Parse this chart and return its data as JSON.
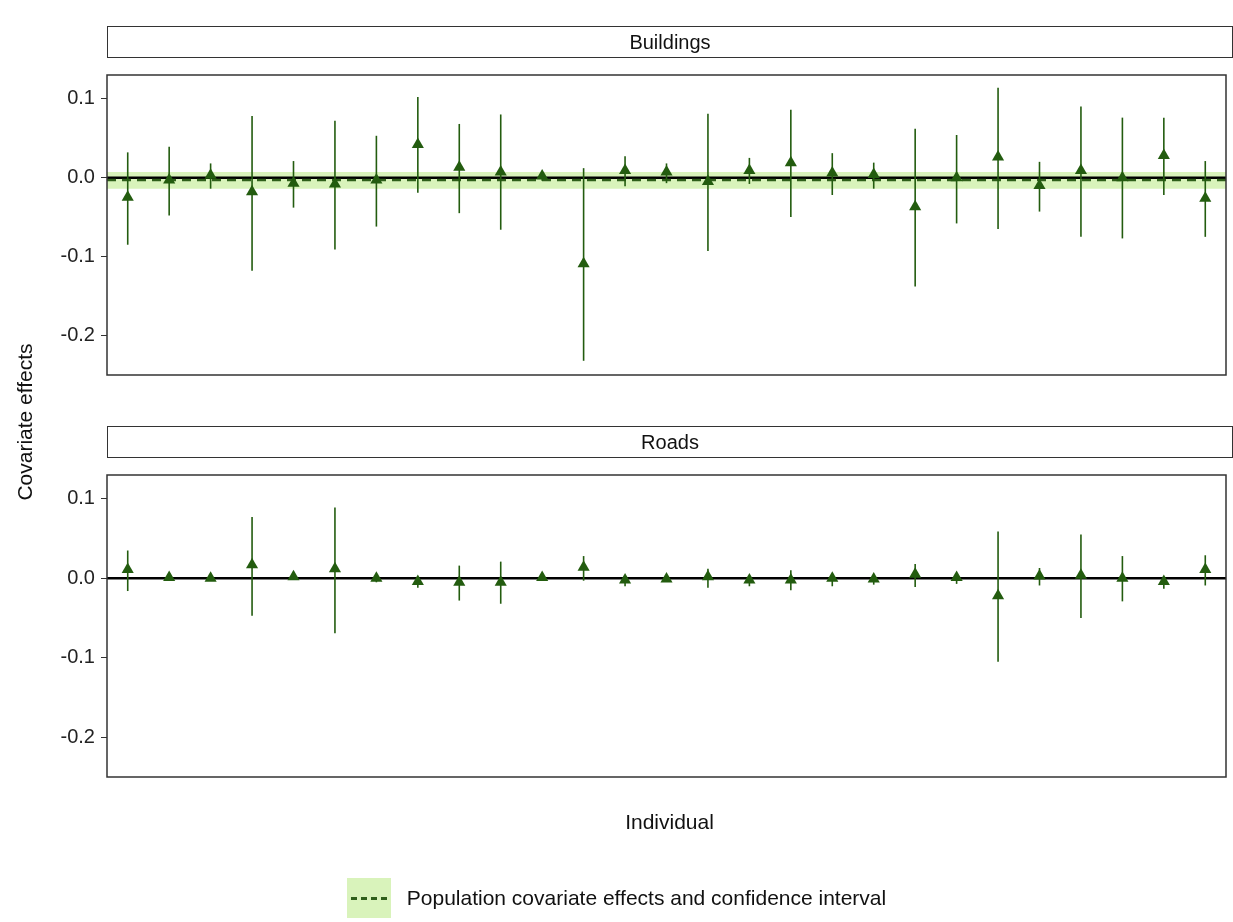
{
  "chart_data": [
    {
      "type": "scatter",
      "title": "Buildings",
      "ylabel": "Covariate effects",
      "marker": "triangle",
      "grid": false,
      "tick_labels": "y",
      "legend": "bottom",
      "categories": [
        null,
        null,
        null,
        null,
        null,
        null,
        null,
        null,
        null,
        null,
        null,
        null,
        null,
        null,
        null,
        null,
        null,
        null,
        null,
        null,
        null,
        null,
        null,
        null,
        null,
        null,
        null
      ],
      "ylim": [
        -0.25,
        0.13
      ],
      "yticks": [
        {
          "value": -0.2,
          "label": "-0.2"
        },
        {
          "value": -0.1,
          "label": "-0.1"
        },
        {
          "value": 0,
          "label": "0.0"
        },
        {
          "value": 0.1,
          "label": "0.1"
        }
      ],
      "series": [
        {
          "type": "scatter",
          "color": "#235c0f",
          "values": [
            -0.025,
            -0.003,
            0.003,
            -0.018,
            -0.007,
            -0.008,
            -0.003,
            0.042,
            0.013,
            0.007,
            0.002,
            -0.109,
            0.009,
            0.007,
            -0.005,
            0.009,
            0.019,
            0.006,
            0.004,
            -0.037,
            0,
            0.026,
            -0.01,
            0.009,
            0,
            0.028,
            -0.026
          ],
          "errors": [
            [
              -0.085,
              0.032
            ],
            [
              -0.048,
              0.039
            ],
            [
              -0.014,
              0.018
            ],
            [
              -0.118,
              0.078
            ],
            [
              -0.038,
              0.021
            ],
            [
              -0.091,
              0.072
            ],
            [
              -0.062,
              0.053
            ],
            [
              -0.019,
              0.102
            ],
            [
              -0.045,
              0.068
            ],
            [
              -0.066,
              0.08
            ],
            [
              -0.004,
              0.005
            ],
            [
              -0.232,
              0.012
            ],
            [
              -0.011,
              0.027
            ],
            [
              -0.007,
              0.018
            ],
            [
              -0.093,
              0.081
            ],
            [
              -0.008,
              0.025
            ],
            [
              -0.05,
              0.086
            ],
            [
              -0.022,
              0.031
            ],
            [
              -0.014,
              0.019
            ],
            [
              -0.138,
              0.062
            ],
            [
              -0.058,
              0.054
            ],
            [
              -0.065,
              0.114
            ],
            [
              -0.043,
              0.02
            ],
            [
              -0.075,
              0.09
            ],
            [
              -0.077,
              0.076
            ],
            [
              -0.022,
              0.076
            ],
            [
              -0.075,
              0.021
            ]
          ]
        }
      ],
      "ref_lines": [
        {
          "axis": "y",
          "value": 0,
          "color": "#000000",
          "line_style": "solid"
        },
        {
          "axis": "y",
          "value": -0.003,
          "color": "#2f5f1a",
          "line_style": "dashed"
        }
      ],
      "bands": [
        {
          "axis": "y",
          "from": -0.014,
          "to": 0.007,
          "color": "#d9f3bb",
          "label": "Population covariate effects and confidence interval"
        }
      ]
    },
    {
      "type": "scatter",
      "title": "Roads",
      "xlabel": "Individual",
      "marker": "triangle",
      "grid": false,
      "tick_labels": "y",
      "categories": [
        null,
        null,
        null,
        null,
        null,
        null,
        null,
        null,
        null,
        null,
        null,
        null,
        null,
        null,
        null,
        null,
        null,
        null,
        null,
        null,
        null,
        null,
        null,
        null,
        null,
        null,
        null
      ],
      "ylim": [
        -0.25,
        0.13
      ],
      "yticks": [
        {
          "value": -0.2,
          "label": "-0.2"
        },
        {
          "value": -0.1,
          "label": "-0.1"
        },
        {
          "value": 0,
          "label": "0.0"
        },
        {
          "value": 0.1,
          "label": "0.1"
        }
      ],
      "series": [
        {
          "type": "scatter",
          "color": "#235c0f",
          "values": [
            0.011,
            0.001,
            0,
            0.017,
            0.002,
            0.012,
            0,
            -0.004,
            -0.005,
            -0.005,
            0.001,
            0.014,
            -0.002,
            -0.001,
            0.002,
            -0.002,
            -0.002,
            0,
            -0.001,
            0.005,
            0.001,
            -0.022,
            0.003,
            0.004,
            0,
            -0.004,
            0.011
          ],
          "errors": [
            [
              -0.016,
              0.035
            ],
            null,
            null,
            [
              -0.047,
              0.077
            ],
            null,
            [
              -0.069,
              0.089
            ],
            [
              -0.005,
              0.002
            ],
            [
              -0.012,
              0
            ],
            [
              -0.028,
              0.016
            ],
            [
              -0.032,
              0.021
            ],
            null,
            [
              -0.003,
              0.028
            ],
            [
              -0.01,
              0.001
            ],
            null,
            [
              -0.012,
              0.012
            ],
            [
              -0.01,
              0
            ],
            [
              -0.015,
              0.01
            ],
            [
              -0.01,
              0
            ],
            [
              -0.008,
              0
            ],
            [
              -0.011,
              0.018
            ],
            [
              -0.007,
              0.001
            ],
            [
              -0.105,
              0.059
            ],
            [
              -0.009,
              0.013
            ],
            [
              -0.05,
              0.055
            ],
            [
              -0.029,
              0.028
            ],
            [
              -0.013,
              0
            ],
            [
              -0.009,
              0.029
            ]
          ]
        }
      ],
      "ref_lines": [
        {
          "axis": "y",
          "value": 0,
          "color": "#000000",
          "line_style": "solid"
        }
      ]
    }
  ]
}
